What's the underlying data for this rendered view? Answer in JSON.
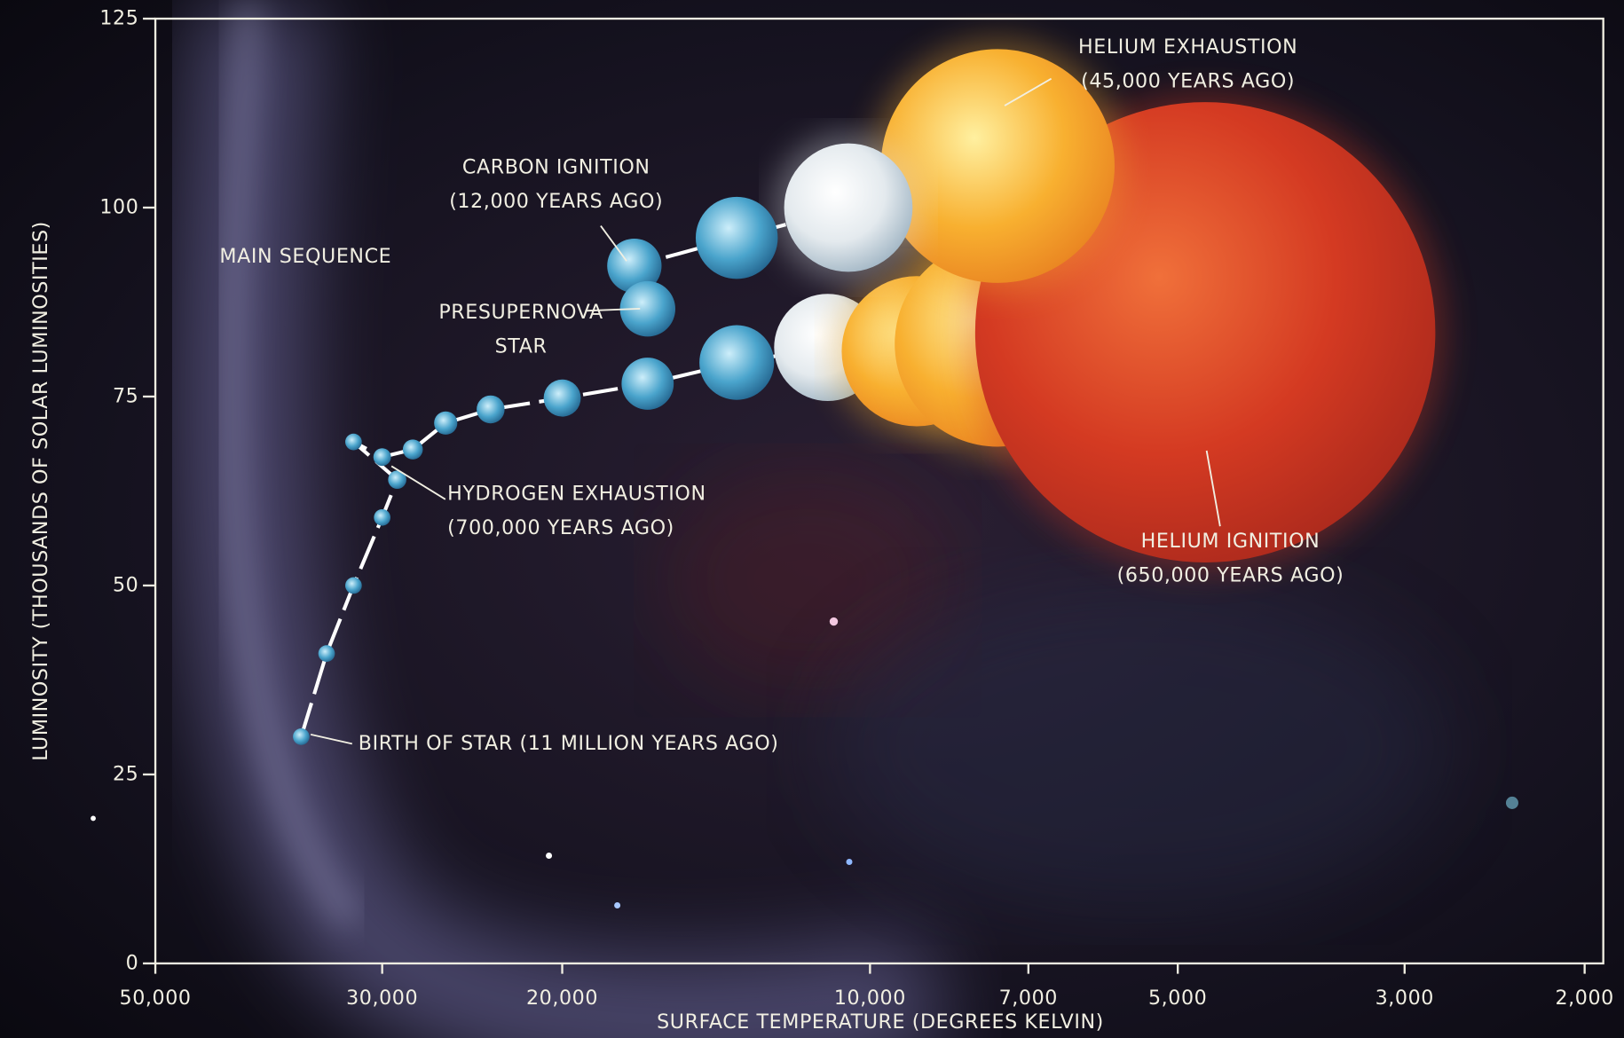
{
  "chart_data": {
    "type": "line",
    "x_label": "SURFACE TEMPERATURE (DEGREES KELVIN)",
    "y_label": "LUMINOSITY (THOUSANDS OF SOLAR LUMINOSITIES)",
    "x": [
      36000,
      34000,
      32000,
      30000,
      29000,
      32000,
      30000,
      28000,
      26000,
      23500,
      20000,
      16500,
      13500,
      11000,
      9000,
      7500,
      4700,
      7500,
      10500,
      13500,
      17000,
      16500
    ],
    "values": [
      30,
      41,
      50,
      59,
      64,
      69,
      67,
      68,
      71.5,
      73.3,
      74.8,
      76.7,
      79.5,
      81.5,
      81,
      82,
      83.5,
      105.5,
      100,
      96,
      92.3,
      86.6
    ],
    "color": "#ffffff",
    "xscale": "log",
    "xlim": [
      50000,
      2000
    ],
    "ylim": [
      0,
      125
    ],
    "xticks": [
      {
        "value": 50000,
        "label": "50,000"
      },
      {
        "value": 30000,
        "label": "30,000"
      },
      {
        "value": 20000,
        "label": "20,000"
      },
      {
        "value": 10000,
        "label": "10,000"
      },
      {
        "value": 7000,
        "label": "7,000"
      },
      {
        "value": 5000,
        "label": "5,000"
      },
      {
        "value": 3000,
        "label": "3,000"
      },
      {
        "value": 2000,
        "label": "2,000"
      }
    ],
    "yticks": [
      0,
      25,
      50,
      75,
      100,
      125
    ],
    "annotations": [
      {
        "lines": [
          "MAIN SEQUENCE"
        ]
      },
      {
        "lines": [
          "CARBON IGNITION",
          "(12,000 YEARS AGO)"
        ]
      },
      {
        "lines": [
          "PRESUPERNOVA",
          "STAR"
        ]
      },
      {
        "lines": [
          "HYDROGEN EXHAUSTION",
          "(700,000 YEARS AGO)"
        ]
      },
      {
        "lines": [
          "HELIUM EXHAUSTION",
          "(45,000 YEARS AGO)"
        ]
      },
      {
        "lines": [
          "HELIUM IGNITION",
          "(650,000 YEARS AGO)"
        ]
      },
      {
        "lines": [
          "BIRTH OF STAR (11 MILLION YEARS AGO)"
        ]
      }
    ]
  }
}
